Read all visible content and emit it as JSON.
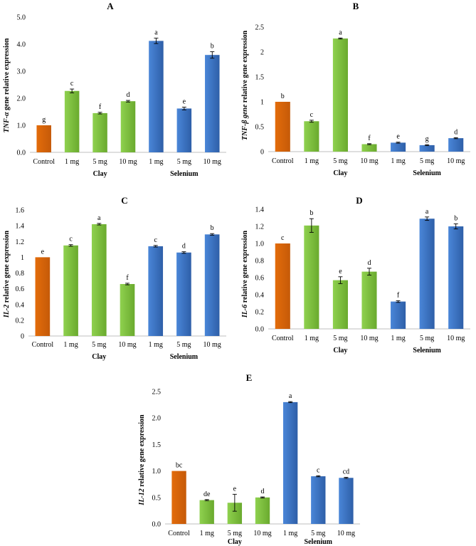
{
  "colors": {
    "control": "#e36c0a",
    "control_dark": "#c55a09",
    "clay": "#8fd14f",
    "clay_dark": "#6aaa2e",
    "selenium": "#4a86d8",
    "selenium_dark": "#2e5fa8",
    "axis": "#bfbfbf"
  },
  "chart_data": [
    {
      "panel": "A",
      "type": "bar",
      "title": "A",
      "ylabel_italic": "TNF-α",
      "ylabel_rest": " gene relative expression",
      "categories": [
        "Control",
        "1 mg",
        "5 mg",
        "10 mg",
        "1 mg",
        "5 mg",
        "10 mg"
      ],
      "groups": [
        {
          "label": "Clay",
          "from": 1,
          "to": 3
        },
        {
          "label": "Selenium",
          "from": 4,
          "to": 6
        }
      ],
      "values": [
        1.0,
        2.27,
        1.45,
        1.89,
        4.12,
        1.62,
        3.6
      ],
      "errors": [
        0.0,
        0.07,
        0.03,
        0.03,
        0.1,
        0.05,
        0.12
      ],
      "letters": [
        "g",
        "c",
        "f",
        "d",
        "a",
        "e",
        "b"
      ],
      "color_keys": [
        "control",
        "clay",
        "clay",
        "clay",
        "selenium",
        "selenium",
        "selenium"
      ],
      "ylim": [
        0,
        5
      ],
      "yticks": [
        "0.0",
        "1.0",
        "2.0",
        "3.0",
        "4.0",
        "5.0"
      ],
      "ystep": 1.0
    },
    {
      "panel": "B",
      "type": "bar",
      "title": "B",
      "ylabel_italic": "TNF-β gene",
      "ylabel_rest": " relative gene expression",
      "categories": [
        "Control",
        "1 mg",
        "5 mg",
        "10 mg",
        "1 mg",
        "5 mg",
        "10 mg"
      ],
      "groups": [
        {
          "label": "Clay",
          "from": 1,
          "to": 3
        },
        {
          "label": "Selenium",
          "from": 4,
          "to": 6
        }
      ],
      "values": [
        1.0,
        0.61,
        2.27,
        0.15,
        0.18,
        0.13,
        0.27
      ],
      "errors": [
        0.0,
        0.02,
        0.01,
        0.01,
        0.01,
        0.01,
        0.01
      ],
      "letters": [
        "b",
        "c",
        "a",
        "f",
        "e",
        "g",
        "d"
      ],
      "color_keys": [
        "control",
        "clay",
        "clay",
        "clay",
        "selenium",
        "selenium",
        "selenium"
      ],
      "ylim": [
        0,
        2.5
      ],
      "yticks": [
        "0",
        "0.5",
        "1",
        "1.5",
        "2",
        "2.5"
      ],
      "ystep": 0.5
    },
    {
      "panel": "C",
      "type": "bar",
      "title": "C",
      "ylabel_italic": "IL-2",
      "ylabel_rest": " relative gene expression",
      "categories": [
        "Control",
        "1 mg",
        "5 mg",
        "10 mg",
        "1 mg",
        "5 mg",
        "10 mg"
      ],
      "groups": [
        {
          "label": "Clay",
          "from": 1,
          "to": 3
        },
        {
          "label": "Selenium",
          "from": 4,
          "to": 6
        }
      ],
      "values": [
        1.0,
        1.15,
        1.42,
        0.66,
        1.14,
        1.06,
        1.29
      ],
      "errors": [
        0.0,
        0.01,
        0.01,
        0.01,
        0.01,
        0.01,
        0.01
      ],
      "letters": [
        "e",
        "c",
        "a",
        "f",
        "c",
        "d",
        "b"
      ],
      "color_keys": [
        "control",
        "clay",
        "clay",
        "clay",
        "selenium",
        "selenium",
        "selenium"
      ],
      "ylim": [
        0,
        1.6
      ],
      "yticks": [
        "0",
        "0.2",
        "0.4",
        "0.6",
        "0.8",
        "1",
        "1.2",
        "1.4",
        "1.6"
      ],
      "ystep": 0.2
    },
    {
      "panel": "D",
      "type": "bar",
      "title": "D",
      "ylabel_italic": "IL-6",
      "ylabel_rest": " relative gene expression",
      "categories": [
        "Control",
        "1 mg",
        "5 mg",
        "10 mg",
        "1 mg",
        "5 mg",
        "10 mg"
      ],
      "groups": [
        {
          "label": "Clay",
          "from": 1,
          "to": 3
        },
        {
          "label": "Selenium",
          "from": 4,
          "to": 6
        }
      ],
      "values": [
        1.0,
        1.21,
        0.57,
        0.67,
        0.32,
        1.29,
        1.2
      ],
      "errors": [
        0.0,
        0.08,
        0.04,
        0.04,
        0.01,
        0.02,
        0.03
      ],
      "letters": [
        "c",
        "b",
        "e",
        "d",
        "f",
        "a",
        "b"
      ],
      "color_keys": [
        "control",
        "clay",
        "clay",
        "clay",
        "selenium",
        "selenium",
        "selenium"
      ],
      "ylim": [
        0,
        1.4
      ],
      "yticks": [
        "0.0",
        "0.2",
        "0.4",
        "0.6",
        "0.8",
        "1.0",
        "1.2",
        "1.4"
      ],
      "ystep": 0.2
    },
    {
      "panel": "E",
      "type": "bar",
      "title": "E",
      "ylabel_italic": "IL-12",
      "ylabel_rest": " relative gene expression",
      "categories": [
        "Control",
        "1 mg",
        "5 mg",
        "10 mg",
        "1 mg",
        "5 mg",
        "10 mg"
      ],
      "groups": [
        {
          "label": "Clay",
          "from": 1,
          "to": 3
        },
        {
          "label": "Selenium",
          "from": 4,
          "to": 6
        }
      ],
      "values": [
        1.0,
        0.45,
        0.4,
        0.5,
        2.3,
        0.9,
        0.87
      ],
      "errors": [
        0.0,
        0.01,
        0.16,
        0.01,
        0.01,
        0.01,
        0.01
      ],
      "letters": [
        "bc",
        "de",
        "e",
        "d",
        "a",
        "c",
        "cd"
      ],
      "color_keys": [
        "control",
        "clay",
        "clay",
        "clay",
        "selenium",
        "selenium",
        "selenium"
      ],
      "ylim": [
        0,
        2.5
      ],
      "yticks": [
        "0.0",
        "0.5",
        "1.0",
        "1.5",
        "2.0",
        "2.5"
      ],
      "ystep": 0.5
    }
  ]
}
